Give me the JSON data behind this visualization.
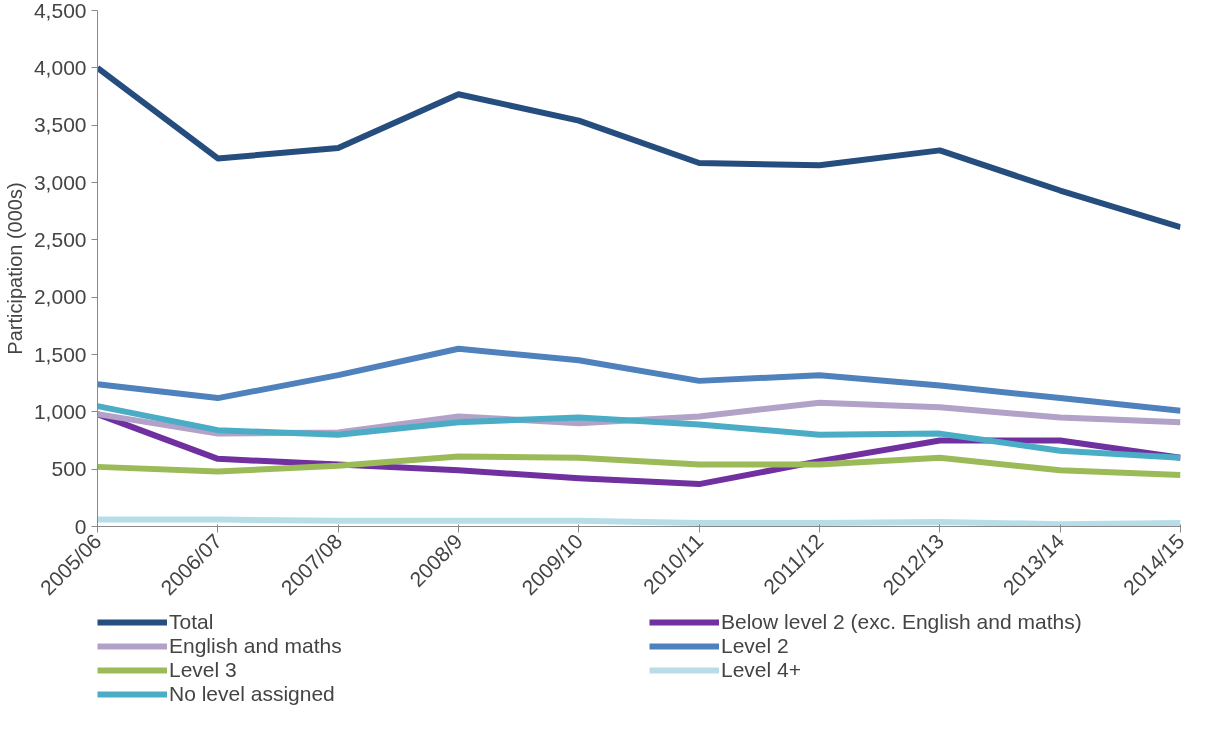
{
  "chart_data": {
    "type": "line",
    "ylabel": "Participation (000s)",
    "categories": [
      "2005/06",
      "2006/07",
      "2007/08",
      "2008/9",
      "2009/10",
      "2010/11",
      "2011/12",
      "2012/13",
      "2013/14",
      "2014/15"
    ],
    "ylim": [
      0,
      4500
    ],
    "yticks": [
      {
        "value": 0,
        "label": "0"
      },
      {
        "value": 500,
        "label": "500"
      },
      {
        "value": 1000,
        "label": "1,000"
      },
      {
        "value": 1500,
        "label": "1,500"
      },
      {
        "value": 2000,
        "label": "2,000"
      },
      {
        "value": 2500,
        "label": "2,500"
      },
      {
        "value": 3000,
        "label": "3,000"
      },
      {
        "value": 3500,
        "label": "3,500"
      },
      {
        "value": 4000,
        "label": "4,000"
      },
      {
        "value": 4500,
        "label": "4,500"
      }
    ],
    "grid": false,
    "legend": "bottom",
    "marker": "none",
    "line_style": "solid",
    "series": [
      {
        "name": "Total",
        "color": "#254e7f",
        "values": [
          4000,
          3210,
          3300,
          3770,
          3540,
          3170,
          3150,
          3280,
          2930,
          2610
        ]
      },
      {
        "name": "Below level 2 (exc. English and maths)",
        "color": "#7030a0",
        "values": [
          980,
          590,
          540,
          490,
          420,
          370,
          570,
          750,
          750,
          600
        ]
      },
      {
        "name": "English and maths",
        "color": "#b3a2c7",
        "values": [
          980,
          810,
          820,
          960,
          900,
          960,
          1080,
          1040,
          950,
          910
        ]
      },
      {
        "name": "Level 2",
        "color": "#4f81bd",
        "values": [
          1240,
          1120,
          1320,
          1550,
          1450,
          1270,
          1320,
          1230,
          1120,
          1010
        ]
      },
      {
        "name": "Level 3",
        "color": "#9bbb59",
        "values": [
          520,
          480,
          530,
          610,
          600,
          540,
          540,
          600,
          490,
          450
        ]
      },
      {
        "name": "Level 4+",
        "color": "#b7dee8",
        "values": [
          60,
          60,
          50,
          50,
          50,
          30,
          30,
          40,
          20,
          30
        ]
      },
      {
        "name": "No level assigned",
        "color": "#4bacc6",
        "values": [
          1050,
          840,
          800,
          910,
          950,
          890,
          800,
          810,
          660,
          600
        ]
      }
    ]
  }
}
